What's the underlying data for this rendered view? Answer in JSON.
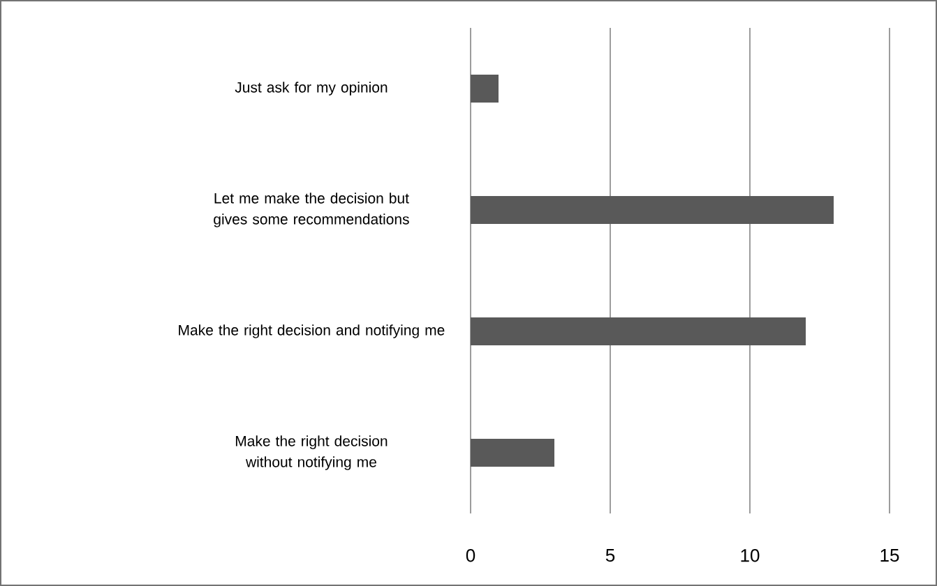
{
  "chart_data": {
    "type": "bar",
    "orientation": "horizontal",
    "categories": [
      "Just ask for my opinion",
      "Let me make the decision but gives some recommendations",
      "Make the right decision and notifying me",
      "Make the right decision without notifying me"
    ],
    "values": [
      1,
      13,
      12,
      3
    ],
    "color": "#595959",
    "xlim": [
      0,
      15
    ],
    "xticks": [
      0,
      5,
      10,
      15
    ],
    "grid": "x"
  }
}
